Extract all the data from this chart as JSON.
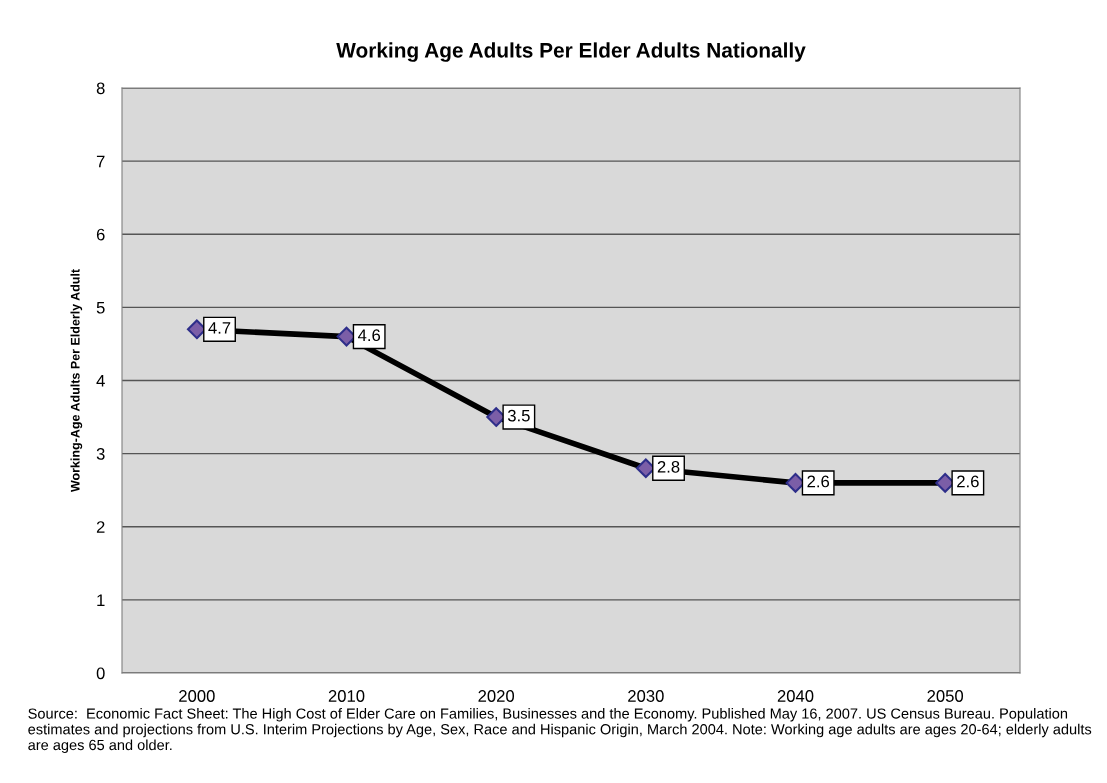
{
  "chart_data": {
    "type": "line",
    "title": "Working Age Adults Per Elder Adults Nationally",
    "ylabel": "Working-Age Adults Per Elderly Adult",
    "categories": [
      "2000",
      "2010",
      "2020",
      "2030",
      "2040",
      "2050"
    ],
    "series": [
      {
        "color": "#000000",
        "values": [
          4.7,
          4.6,
          3.5,
          2.8,
          2.6,
          2.6
        ]
      }
    ],
    "ylim": [
      0,
      8
    ],
    "yticks": [
      0,
      1,
      2,
      3,
      4,
      5,
      6,
      7,
      8
    ],
    "grid": "y",
    "marker": "diamond",
    "line_style": "solid",
    "legend": false,
    "data_labels": true,
    "annotations": [
      "Source:  Economic Fact Sheet: The High Cost of Elder Care on Families, Businesses and the Economy. Published May 16, 2007. US Census Bureau. Population estimates and projections from U.S. Interim Projections by Age, Sex, Race and Hispanic Origin, March 2004. Note: Working age adults are ages 20-64; elderly adults are ages 65 and older."
    ]
  }
}
